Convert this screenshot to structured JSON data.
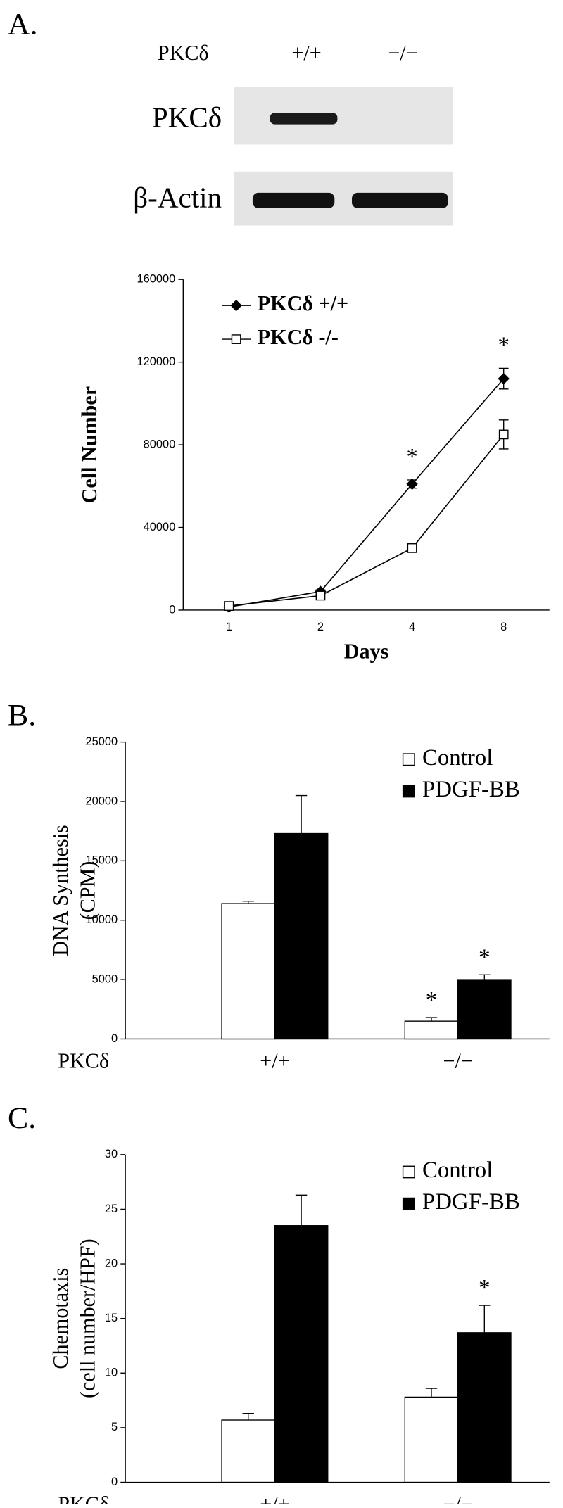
{
  "figure": {
    "panel_labels": [
      "A.",
      "B.",
      "C."
    ],
    "blot": {
      "header": "PKCδ",
      "lanes": [
        "+/+",
        "−/−"
      ],
      "rows": [
        "PKCδ",
        "β-Actin"
      ]
    }
  },
  "chart_data": [
    {
      "type": "line",
      "x_label": "Days",
      "y_label": "Cell Number",
      "categories": [
        "1",
        "2",
        "4",
        "8"
      ],
      "series": [
        {
          "name": "PKCδ +/+",
          "color": "#000000",
          "marker": "diamond",
          "values": [
            1500,
            9000,
            61000,
            112000
          ],
          "errors": [
            500,
            800,
            2000,
            5000
          ],
          "annotations": [
            null,
            null,
            "*",
            "*"
          ]
        },
        {
          "name": "PKCδ -/-",
          "color": "#000000",
          "marker": "square-open",
          "values": [
            2000,
            7000,
            30000,
            85000
          ],
          "errors": [
            1000,
            600,
            2000,
            7000
          ],
          "annotations": [
            null,
            null,
            null,
            null
          ]
        }
      ],
      "ylim": [
        0,
        160000
      ],
      "yticks": [
        0,
        40000,
        80000,
        120000,
        160000
      ],
      "legend": "upper left"
    },
    {
      "type": "bar",
      "x_label": "PKCδ",
      "y_label": [
        "DNA Synthesis",
        "(CPM)"
      ],
      "categories": [
        "+/+",
        "−/−"
      ],
      "series": [
        {
          "name": "Control",
          "color": "#ffffff",
          "values": [
            11400,
            1500
          ],
          "errors": [
            200,
            300
          ],
          "annotations": [
            null,
            "*"
          ]
        },
        {
          "name": "PDGF-BB",
          "color": "#000000",
          "values": [
            17300,
            5000
          ],
          "errors": [
            3200,
            400
          ],
          "annotations": [
            null,
            "*"
          ]
        }
      ],
      "ylim": [
        0,
        25000
      ],
      "yticks": [
        0,
        5000,
        10000,
        15000,
        20000,
        25000
      ],
      "legend": "upper right"
    },
    {
      "type": "bar",
      "x_label": "PKCδ",
      "y_label": [
        "Chemotaxis",
        "(cell number/HPF)"
      ],
      "categories": [
        "+/+",
        "−/−"
      ],
      "series": [
        {
          "name": "Control",
          "color": "#ffffff",
          "values": [
            5.7,
            7.8
          ],
          "errors": [
            0.6,
            0.8
          ],
          "annotations": [
            null,
            null
          ]
        },
        {
          "name": "PDGF-BB",
          "color": "#000000",
          "values": [
            23.5,
            13.7
          ],
          "errors": [
            2.8,
            2.5
          ],
          "annotations": [
            null,
            "*"
          ]
        }
      ],
      "ylim": [
        0,
        30
      ],
      "yticks": [
        0,
        5,
        10,
        15,
        20,
        25,
        30
      ],
      "legend": "upper right"
    }
  ]
}
